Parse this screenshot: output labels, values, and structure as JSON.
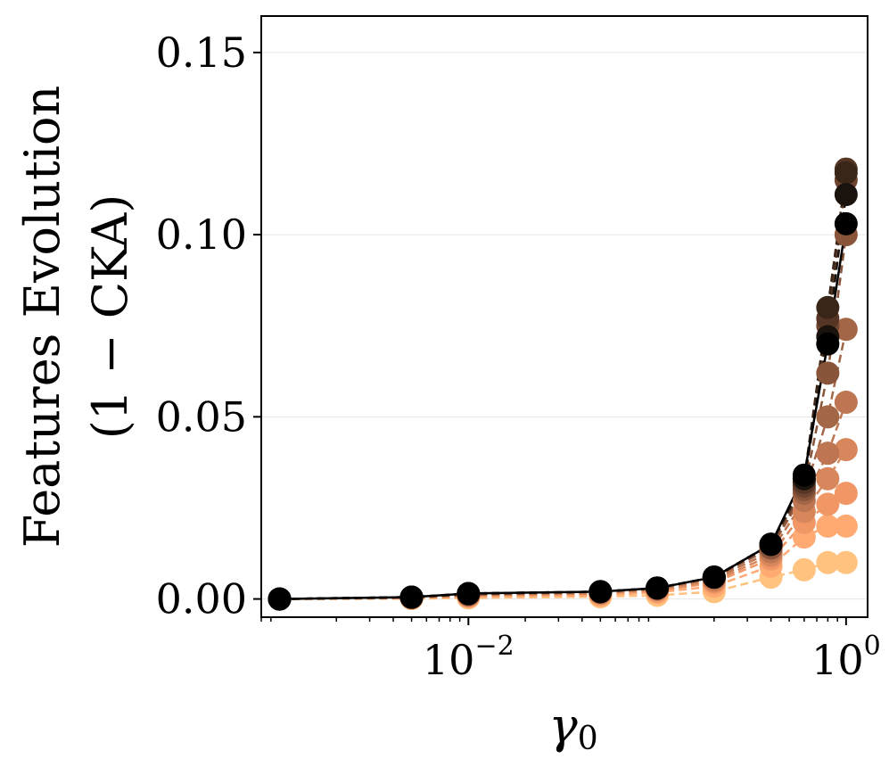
{
  "chart_data": {
    "type": "scatter",
    "title": "",
    "xlabel": "γ0",
    "ylabel_line1": "Features Evolution",
    "ylabel_line2": "(1 − CKA)",
    "xscale": "log",
    "xlim": [
      0.0008,
      1.3
    ],
    "ylim": [
      -0.005,
      0.16
    ],
    "xticks": [
      {
        "value": 0.01,
        "base": "10",
        "exp": "−2"
      },
      {
        "value": 1,
        "base": "10",
        "exp": "0"
      }
    ],
    "yticks": [
      {
        "value": 0,
        "label": "0.00"
      },
      {
        "value": 0.05,
        "label": "0.05"
      },
      {
        "value": 0.1,
        "label": "0.10"
      },
      {
        "value": 0.15,
        "label": "0.15"
      }
    ],
    "grid": "horizontal",
    "legend": "none",
    "x": [
      0.001,
      0.005,
      0.01,
      0.05,
      0.1,
      0.2,
      0.4,
      0.6,
      0.8,
      1.0
    ],
    "series": [
      {
        "color": "#000000",
        "values": [
          0,
          0.0005,
          0.0015,
          0.002,
          0.003,
          0.006,
          0.015,
          0.034,
          0.07,
          0.103
        ]
      },
      {
        "color": "#1a120d",
        "values": [
          0,
          0.0005,
          0.0015,
          0.002,
          0.003,
          0.006,
          0.015,
          0.033,
          0.072,
          0.111
        ]
      },
      {
        "color": "#3a2519",
        "values": [
          0,
          0.0005,
          0.0015,
          0.002,
          0.003,
          0.006,
          0.015,
          0.033,
          0.08,
          0.117
        ]
      },
      {
        "color": "#553624",
        "values": [
          0,
          0.0005,
          0.0014,
          0.002,
          0.003,
          0.006,
          0.015,
          0.032,
          0.077,
          0.118
        ]
      },
      {
        "color": "#6e4530",
        "values": [
          0,
          0.0005,
          0.0014,
          0.002,
          0.003,
          0.006,
          0.015,
          0.031,
          0.075,
          0.115
        ]
      },
      {
        "color": "#88553b",
        "values": [
          0,
          0.0004,
          0.0013,
          0.002,
          0.003,
          0.006,
          0.014,
          0.03,
          0.062,
          0.1
        ]
      },
      {
        "color": "#a36646",
        "values": [
          0,
          0.0004,
          0.0012,
          0.002,
          0.003,
          0.006,
          0.014,
          0.029,
          0.05,
          0.074
        ]
      },
      {
        "color": "#bd7651",
        "values": [
          0,
          0.0004,
          0.0011,
          0.0018,
          0.0028,
          0.0055,
          0.013,
          0.027,
          0.04,
          0.054
        ]
      },
      {
        "color": "#d8875c",
        "values": [
          0,
          0.0003,
          0.001,
          0.0016,
          0.0025,
          0.005,
          0.012,
          0.024,
          0.033,
          0.041
        ]
      },
      {
        "color": "#f19766",
        "values": [
          0,
          0.0003,
          0.0008,
          0.0014,
          0.0022,
          0.0045,
          0.011,
          0.021,
          0.026,
          0.029
        ]
      },
      {
        "color": "#ffaa73",
        "values": [
          0,
          0.0002,
          0.0006,
          0.001,
          0.0018,
          0.0035,
          0.009,
          0.017,
          0.02,
          0.02
        ]
      },
      {
        "color": "#ffc27f",
        "values": [
          0,
          0.0001,
          0.0003,
          0.0006,
          0.001,
          0.002,
          0.006,
          0.008,
          0.01,
          0.01
        ]
      }
    ]
  }
}
